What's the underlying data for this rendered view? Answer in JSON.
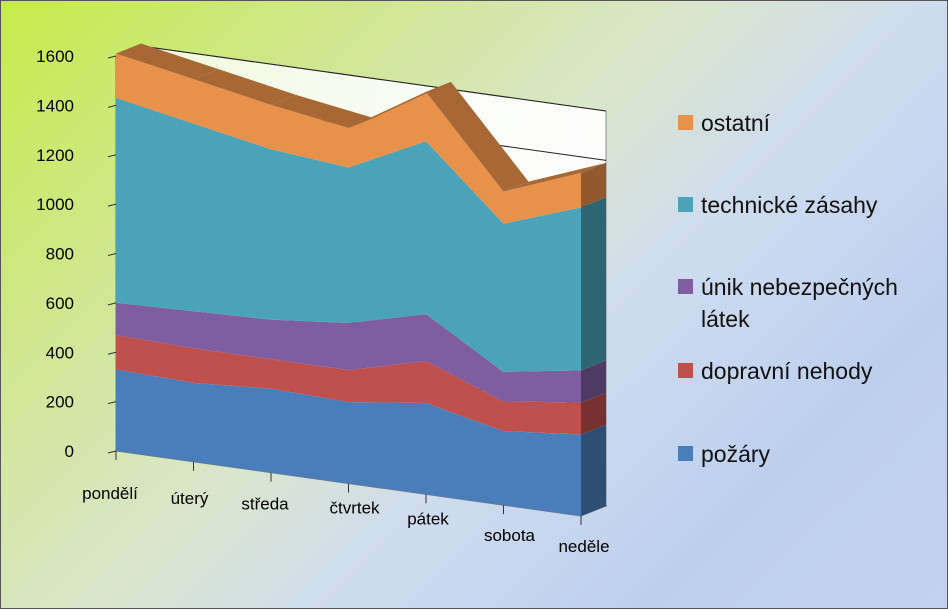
{
  "chart_data": {
    "type": "area",
    "stacked": true,
    "three_d": true,
    "title": "",
    "xlabel": "",
    "ylabel": "",
    "ylim": [
      0,
      1600
    ],
    "yticks": [
      0,
      200,
      400,
      600,
      800,
      1000,
      1200,
      1400,
      1600
    ],
    "ytick_labels": [
      "0",
      "200",
      "400",
      "600",
      "800",
      "1000",
      "1200",
      "1400",
      "1600"
    ],
    "grid": true,
    "legend_position": "right",
    "categories": [
      "pondělí",
      "úterý",
      "středa",
      "čtvrtek",
      "pátek",
      "sobota",
      "neděle"
    ],
    "series": [
      {
        "name": "požáry",
        "color": "#4a7ebb",
        "values": [
          330,
          320,
          340,
          330,
          370,
          300,
          330
        ]
      },
      {
        "name": "dopravní nehody",
        "color": "#c0504d",
        "values": [
          140,
          140,
          120,
          130,
          170,
          120,
          130
        ]
      },
      {
        "name": "únik nebezpečných látek",
        "name_lines": [
          "únik nebezpečných",
          "látek"
        ],
        "color": "#7e5ea0",
        "values": [
          130,
          150,
          160,
          190,
          190,
          120,
          130
        ]
      },
      {
        "name": "technické zásahy",
        "color": "#4aa3b8",
        "values": [
          830,
          760,
          690,
          630,
          700,
          600,
          660
        ]
      },
      {
        "name": "ostatní",
        "color": "#e8914a",
        "values": [
          180,
          180,
          180,
          160,
          200,
          130,
          140
        ]
      }
    ]
  }
}
